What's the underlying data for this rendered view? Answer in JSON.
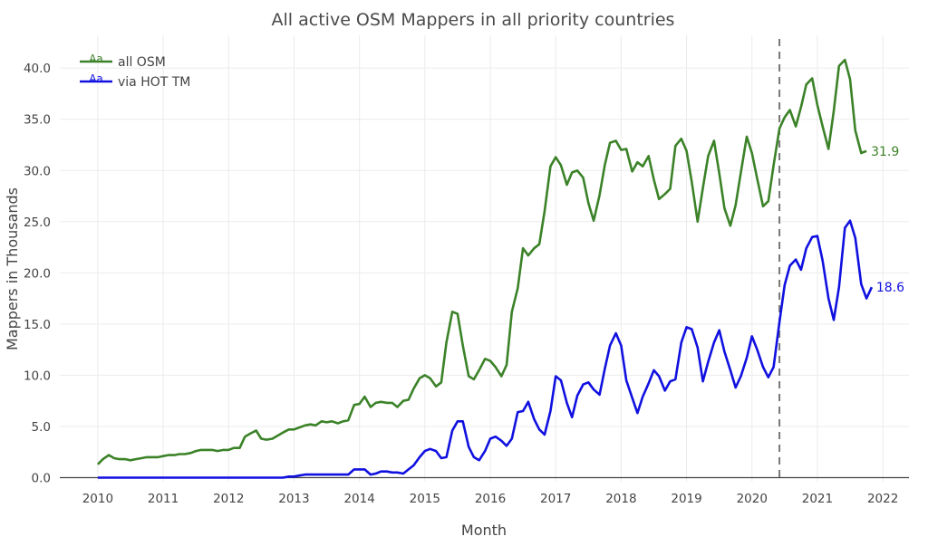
{
  "chart_data": {
    "type": "line",
    "title": "All active OSM Mappers in all priority countries",
    "xlabel": "Month",
    "ylabel": "Mappers in Thousands",
    "xlim": [
      2009.42,
      2022.4
    ],
    "ylim": [
      -0.4,
      43.2
    ],
    "x_ticks": [
      "2010",
      "2011",
      "2012",
      "2013",
      "2014",
      "2015",
      "2016",
      "2017",
      "2018",
      "2019",
      "2020",
      "2021",
      "2022"
    ],
    "y_ticks": [
      "0.0",
      "5.0",
      "10.0",
      "15.0",
      "20.0",
      "25.0",
      "30.0",
      "35.0",
      "40.0"
    ],
    "grid": true,
    "legend_position": "top-left",
    "legend_symbol": "Aa",
    "reference_line": {
      "x": 2020.42,
      "style": "dashed",
      "color": "#777777"
    },
    "series": [
      {
        "name": "all OSM",
        "color": "#3b8228",
        "end_label": "31.9",
        "points": [
          [
            2010.0,
            1.3
          ],
          [
            2010.08,
            1.8
          ],
          [
            2010.17,
            2.2
          ],
          [
            2010.25,
            1.9
          ],
          [
            2010.33,
            1.8
          ],
          [
            2010.42,
            1.8
          ],
          [
            2010.5,
            1.7
          ],
          [
            2010.58,
            1.8
          ],
          [
            2010.67,
            1.9
          ],
          [
            2010.75,
            2.0
          ],
          [
            2010.83,
            2.0
          ],
          [
            2010.92,
            2.0
          ],
          [
            2011.0,
            2.1
          ],
          [
            2011.08,
            2.2
          ],
          [
            2011.17,
            2.2
          ],
          [
            2011.25,
            2.3
          ],
          [
            2011.33,
            2.3
          ],
          [
            2011.42,
            2.4
          ],
          [
            2011.5,
            2.6
          ],
          [
            2011.58,
            2.7
          ],
          [
            2011.67,
            2.7
          ],
          [
            2011.75,
            2.7
          ],
          [
            2011.83,
            2.6
          ],
          [
            2011.92,
            2.7
          ],
          [
            2012.0,
            2.7
          ],
          [
            2012.08,
            2.9
          ],
          [
            2012.17,
            2.9
          ],
          [
            2012.25,
            4.0
          ],
          [
            2012.33,
            4.3
          ],
          [
            2012.42,
            4.6
          ],
          [
            2012.5,
            3.8
          ],
          [
            2012.58,
            3.7
          ],
          [
            2012.67,
            3.8
          ],
          [
            2012.75,
            4.1
          ],
          [
            2012.83,
            4.4
          ],
          [
            2012.92,
            4.7
          ],
          [
            2013.0,
            4.7
          ],
          [
            2013.08,
            4.9
          ],
          [
            2013.17,
            5.1
          ],
          [
            2013.25,
            5.2
          ],
          [
            2013.33,
            5.1
          ],
          [
            2013.42,
            5.5
          ],
          [
            2013.5,
            5.4
          ],
          [
            2013.58,
            5.5
          ],
          [
            2013.67,
            5.3
          ],
          [
            2013.75,
            5.5
          ],
          [
            2013.83,
            5.6
          ],
          [
            2013.92,
            7.1
          ],
          [
            2014.0,
            7.2
          ],
          [
            2014.08,
            7.9
          ],
          [
            2014.17,
            6.9
          ],
          [
            2014.25,
            7.3
          ],
          [
            2014.33,
            7.4
          ],
          [
            2014.42,
            7.3
          ],
          [
            2014.5,
            7.3
          ],
          [
            2014.58,
            6.9
          ],
          [
            2014.67,
            7.5
          ],
          [
            2014.75,
            7.6
          ],
          [
            2014.83,
            8.7
          ],
          [
            2014.92,
            9.7
          ],
          [
            2015.0,
            10.0
          ],
          [
            2015.08,
            9.7
          ],
          [
            2015.17,
            8.9
          ],
          [
            2015.25,
            9.3
          ],
          [
            2015.33,
            13.2
          ],
          [
            2015.42,
            16.2
          ],
          [
            2015.5,
            16.0
          ],
          [
            2015.58,
            12.9
          ],
          [
            2015.67,
            9.9
          ],
          [
            2015.75,
            9.6
          ],
          [
            2015.83,
            10.5
          ],
          [
            2015.92,
            11.6
          ],
          [
            2016.0,
            11.4
          ],
          [
            2016.08,
            10.8
          ],
          [
            2016.17,
            9.9
          ],
          [
            2016.25,
            11.0
          ],
          [
            2016.33,
            16.2
          ],
          [
            2016.42,
            18.5
          ],
          [
            2016.5,
            22.4
          ],
          [
            2016.58,
            21.7
          ],
          [
            2016.67,
            22.4
          ],
          [
            2016.75,
            22.8
          ],
          [
            2016.83,
            26.0
          ],
          [
            2016.92,
            30.4
          ],
          [
            2017.0,
            31.3
          ],
          [
            2017.08,
            30.5
          ],
          [
            2017.17,
            28.6
          ],
          [
            2017.25,
            29.8
          ],
          [
            2017.33,
            30.0
          ],
          [
            2017.42,
            29.3
          ],
          [
            2017.5,
            26.8
          ],
          [
            2017.58,
            25.1
          ],
          [
            2017.67,
            27.6
          ],
          [
            2017.75,
            30.5
          ],
          [
            2017.83,
            32.7
          ],
          [
            2017.92,
            32.9
          ],
          [
            2018.0,
            32.0
          ],
          [
            2018.08,
            32.1
          ],
          [
            2018.17,
            29.9
          ],
          [
            2018.25,
            30.8
          ],
          [
            2018.33,
            30.4
          ],
          [
            2018.42,
            31.4
          ],
          [
            2018.5,
            29.1
          ],
          [
            2018.58,
            27.2
          ],
          [
            2018.67,
            27.7
          ],
          [
            2018.75,
            28.2
          ],
          [
            2018.83,
            32.4
          ],
          [
            2018.92,
            33.1
          ],
          [
            2019.0,
            31.9
          ],
          [
            2019.08,
            28.9
          ],
          [
            2019.17,
            25.0
          ],
          [
            2019.25,
            28.3
          ],
          [
            2019.33,
            31.4
          ],
          [
            2019.42,
            32.9
          ],
          [
            2019.5,
            29.7
          ],
          [
            2019.58,
            26.3
          ],
          [
            2019.67,
            24.6
          ],
          [
            2019.75,
            26.6
          ],
          [
            2019.83,
            29.8
          ],
          [
            2019.92,
            33.3
          ],
          [
            2020.0,
            31.7
          ],
          [
            2020.08,
            29.2
          ],
          [
            2020.17,
            26.5
          ],
          [
            2020.25,
            27.0
          ],
          [
            2020.33,
            30.5
          ],
          [
            2020.42,
            34.1
          ],
          [
            2020.5,
            35.2
          ],
          [
            2020.58,
            35.9
          ],
          [
            2020.67,
            34.3
          ],
          [
            2020.75,
            36.2
          ],
          [
            2020.83,
            38.4
          ],
          [
            2020.92,
            39.0
          ],
          [
            2021.0,
            36.4
          ],
          [
            2021.08,
            34.3
          ],
          [
            2021.17,
            32.1
          ],
          [
            2021.25,
            35.8
          ],
          [
            2021.33,
            40.2
          ],
          [
            2021.42,
            40.8
          ],
          [
            2021.5,
            38.9
          ],
          [
            2021.58,
            33.9
          ],
          [
            2021.67,
            31.7
          ],
          [
            2021.75,
            31.9
          ]
        ]
      },
      {
        "name": "via HOT TM",
        "color": "#1010e0",
        "end_label": "18.6",
        "points": [
          [
            2010.0,
            0.0
          ],
          [
            2010.5,
            0.0
          ],
          [
            2011.0,
            0.0
          ],
          [
            2011.5,
            0.0
          ],
          [
            2012.0,
            0.0
          ],
          [
            2012.5,
            0.0
          ],
          [
            2012.83,
            0.0
          ],
          [
            2012.92,
            0.1
          ],
          [
            2013.0,
            0.1
          ],
          [
            2013.08,
            0.2
          ],
          [
            2013.17,
            0.3
          ],
          [
            2013.25,
            0.3
          ],
          [
            2013.33,
            0.3
          ],
          [
            2013.42,
            0.3
          ],
          [
            2013.5,
            0.3
          ],
          [
            2013.58,
            0.3
          ],
          [
            2013.67,
            0.3
          ],
          [
            2013.75,
            0.3
          ],
          [
            2013.83,
            0.3
          ],
          [
            2013.92,
            0.8
          ],
          [
            2014.0,
            0.8
          ],
          [
            2014.08,
            0.8
          ],
          [
            2014.17,
            0.3
          ],
          [
            2014.25,
            0.4
          ],
          [
            2014.33,
            0.6
          ],
          [
            2014.42,
            0.6
          ],
          [
            2014.5,
            0.5
          ],
          [
            2014.58,
            0.5
          ],
          [
            2014.67,
            0.4
          ],
          [
            2014.75,
            0.8
          ],
          [
            2014.83,
            1.2
          ],
          [
            2014.92,
            2.0
          ],
          [
            2015.0,
            2.6
          ],
          [
            2015.08,
            2.8
          ],
          [
            2015.17,
            2.6
          ],
          [
            2015.25,
            1.9
          ],
          [
            2015.33,
            2.0
          ],
          [
            2015.42,
            4.6
          ],
          [
            2015.5,
            5.5
          ],
          [
            2015.58,
            5.5
          ],
          [
            2015.67,
            3.0
          ],
          [
            2015.75,
            2.0
          ],
          [
            2015.83,
            1.7
          ],
          [
            2015.92,
            2.6
          ],
          [
            2016.0,
            3.8
          ],
          [
            2016.08,
            4.0
          ],
          [
            2016.17,
            3.6
          ],
          [
            2016.25,
            3.1
          ],
          [
            2016.33,
            3.8
          ],
          [
            2016.42,
            6.4
          ],
          [
            2016.5,
            6.5
          ],
          [
            2016.58,
            7.4
          ],
          [
            2016.67,
            5.7
          ],
          [
            2016.75,
            4.7
          ],
          [
            2016.83,
            4.2
          ],
          [
            2016.92,
            6.5
          ],
          [
            2017.0,
            9.9
          ],
          [
            2017.08,
            9.5
          ],
          [
            2017.17,
            7.3
          ],
          [
            2017.25,
            5.9
          ],
          [
            2017.33,
            8.0
          ],
          [
            2017.42,
            9.1
          ],
          [
            2017.5,
            9.3
          ],
          [
            2017.58,
            8.6
          ],
          [
            2017.67,
            8.1
          ],
          [
            2017.75,
            10.6
          ],
          [
            2017.83,
            12.9
          ],
          [
            2017.92,
            14.1
          ],
          [
            2018.0,
            12.9
          ],
          [
            2018.08,
            9.5
          ],
          [
            2018.17,
            7.8
          ],
          [
            2018.25,
            6.3
          ],
          [
            2018.33,
            7.9
          ],
          [
            2018.42,
            9.2
          ],
          [
            2018.5,
            10.5
          ],
          [
            2018.58,
            9.9
          ],
          [
            2018.67,
            8.5
          ],
          [
            2018.75,
            9.4
          ],
          [
            2018.83,
            9.6
          ],
          [
            2018.92,
            13.2
          ],
          [
            2019.0,
            14.7
          ],
          [
            2019.08,
            14.5
          ],
          [
            2019.17,
            12.7
          ],
          [
            2019.25,
            9.4
          ],
          [
            2019.33,
            11.3
          ],
          [
            2019.42,
            13.2
          ],
          [
            2019.5,
            14.4
          ],
          [
            2019.58,
            12.3
          ],
          [
            2019.67,
            10.5
          ],
          [
            2019.75,
            8.8
          ],
          [
            2019.83,
            9.9
          ],
          [
            2019.92,
            11.7
          ],
          [
            2020.0,
            13.8
          ],
          [
            2020.08,
            12.5
          ],
          [
            2020.17,
            10.8
          ],
          [
            2020.25,
            9.8
          ],
          [
            2020.33,
            10.8
          ],
          [
            2020.42,
            15.2
          ],
          [
            2020.5,
            18.8
          ],
          [
            2020.58,
            20.7
          ],
          [
            2020.67,
            21.3
          ],
          [
            2020.75,
            20.3
          ],
          [
            2020.83,
            22.4
          ],
          [
            2020.92,
            23.5
          ],
          [
            2021.0,
            23.6
          ],
          [
            2021.08,
            21.2
          ],
          [
            2021.17,
            17.5
          ],
          [
            2021.25,
            15.4
          ],
          [
            2021.33,
            18.6
          ],
          [
            2021.42,
            24.4
          ],
          [
            2021.5,
            25.1
          ],
          [
            2021.58,
            23.4
          ],
          [
            2021.67,
            18.9
          ],
          [
            2021.75,
            17.5
          ],
          [
            2021.83,
            18.6
          ]
        ]
      }
    ]
  }
}
